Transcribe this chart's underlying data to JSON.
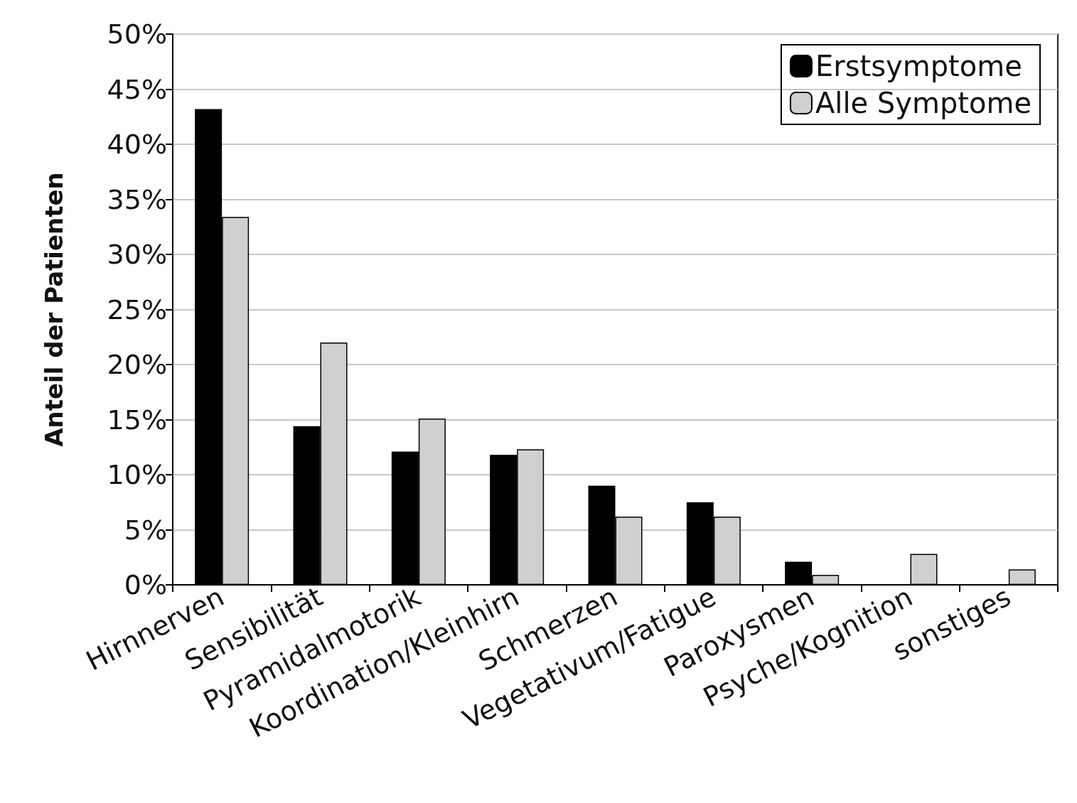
{
  "chart_data": {
    "type": "bar",
    "ylabel": "Anteil der Patienten",
    "categories": [
      "Hirnnerven",
      "Sensibilität",
      "Pyramidalmotorik",
      "Koordination/Kleinhirn",
      "Schmerzen",
      "Vegetativum/Fatigue",
      "Paroxysmen",
      "Psyche/Kognition",
      "sonstiges"
    ],
    "series": [
      {
        "name": "Erstsymptome",
        "color": "#000000",
        "values": [
          43.2,
          14.4,
          12.1,
          11.8,
          9.0,
          7.5,
          2.1,
          0,
          0
        ]
      },
      {
        "name": "Alle Symptome",
        "color": "#d0d0d0",
        "values": [
          33.4,
          22.0,
          15.1,
          12.3,
          6.2,
          6.2,
          0.9,
          2.8,
          1.4
        ]
      }
    ],
    "ylim": [
      0,
      50
    ],
    "yticks": [
      {
        "value": 0,
        "label": "0%"
      },
      {
        "value": 5,
        "label": "5%"
      },
      {
        "value": 10,
        "label": "10%"
      },
      {
        "value": 15,
        "label": "15%"
      },
      {
        "value": 20,
        "label": "20%"
      },
      {
        "value": 25,
        "label": "25%"
      },
      {
        "value": 30,
        "label": "30%"
      },
      {
        "value": 35,
        "label": "35%"
      },
      {
        "value": 40,
        "label": "40%"
      },
      {
        "value": 45,
        "label": "45%"
      },
      {
        "value": 50,
        "label": "50%"
      }
    ],
    "grid": "y",
    "legend": "top right"
  }
}
